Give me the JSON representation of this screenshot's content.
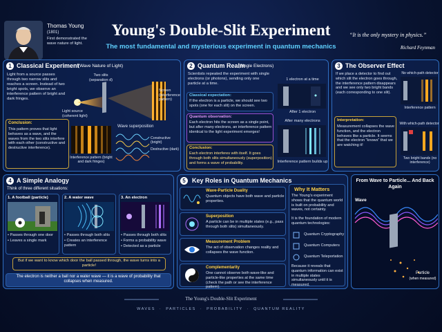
{
  "header": {
    "name": "Thomas Young",
    "year": "(1801)",
    "caption": "First demonstrated the wave nature of light.",
    "title": "Young's Double-Slit Experiment",
    "subtitle": "The most fundamental and mysterious experiment in quantum mechanics",
    "quote": "“It is the only mystery in physics.”",
    "quote_author": "Richard Feynman"
  },
  "classical": {
    "number": "1",
    "title": "Classical Experiment",
    "subtitle": "(Wave Nature of Light)",
    "body": "Light from a source passes through two narrow slits and reaches a screen. Instead of two bright spots, we observe an interference pattern of bright and dark fringes.",
    "slits": "Two slits (separation d)",
    "screen": "Screen (interference pattern)",
    "source": "Light source (coherent light)",
    "conclusion_label": "Conclusion:",
    "conclusion": "This pattern proves that light behaves as a wave, and the waves from the two slits interfere with each other (constructive and destructive interference).",
    "pattern_label": "Interference pattern (bright and dark fringes)",
    "superposition_label": "Wave superposition",
    "constructive": "Constructive (bright)",
    "destructive": "Destructive (dark)"
  },
  "quantum": {
    "number": "2",
    "title": "Quantum Realm",
    "subtitle": "(Single Electrons)",
    "body": "Scientists repeated the experiment with single electrons (or photons), sending only one particle at a time.",
    "expectation_label": "Classical expectation:",
    "expectation": "If the electron is a particle, we should see two spots (one for each slit) on the screen.",
    "observation_label": "Quantum observation:",
    "observation": "Each electron hits the screen as a single point, but after many electrons, an interference pattern identical to the light experiment emerges!",
    "conclusion_label": "Conclusion:",
    "conclusion": "Each electron interferes with itself. It goes through both slits simultaneously (superposition) and forms a wave of probability.",
    "one_at_a_time": "1 electron at a time",
    "after_one": "After 1 electron",
    "after_many": "After many electrons",
    "builds_up": "Interference pattern builds up"
  },
  "observer": {
    "number": "3",
    "title": "The Observer Effect",
    "body": "If we place a detector to find out which slit the electron goes through, the interference pattern disappears and we see only two bright bands (each corresponding to one slit).",
    "no_detector": "No which-path detector",
    "interference": "Interference pattern",
    "with_detector": "With which-path detector",
    "two_bands": "Two bright bands (no interference)",
    "interpretation_label": "Interpretation:",
    "interpretation": "Measurement collapses the wave function, and the electron behaves like a particle. It seems that the electron “knows” that we are watching it!"
  },
  "analogy": {
    "number": "4",
    "title": "A Simple Analogy",
    "intro": "Think of three different situations:",
    "cases": [
      {
        "title": "1. A football (particle)",
        "points": [
          "• Passes through one door",
          "• Leaves a single mark"
        ]
      },
      {
        "title": "2. A water wave",
        "points": [
          "• Passes through both slits",
          "• Creates an interference pattern"
        ]
      },
      {
        "title": "3. An electron",
        "points": [
          "• Passes through both slits",
          "• Forms a probability wave",
          "• Detected as a particle"
        ]
      }
    ],
    "note": "But if we want to know which door the ball passed through, the wave turns into a particle!",
    "summary": "The electron is neither a ball nor a water wave — it is a wave of probability that collapses when measured."
  },
  "roles": {
    "number": "5",
    "title": "Key Roles in Quantum Mechanics",
    "items": [
      {
        "title": "Wave-Particle Duality",
        "text": "Quantum objects have both wave and particle properties."
      },
      {
        "title": "Superposition",
        "text": "A particle can be in multiple states (e.g., pass through both slits) simultaneously."
      },
      {
        "title": "Measurement Problem",
        "text": "The act of observation changes reality and collapses the wave function."
      },
      {
        "title": "Complementarity",
        "text": "One cannot observe both wave-like and particle-like properties at the same time (check the path or see the interference pattern)."
      }
    ]
  },
  "why": {
    "title": "Why It Matters",
    "body": "The Young's experiment shows that the quantum world is built on probability and waves, not certainty.",
    "lead": "It is the foundation of modern quantum technologies:",
    "tech": [
      "Quantum Cryptography",
      "Quantum Computers",
      "Quantum Teleportation"
    ],
    "closing": "Because it reveals that quantum information can exist in multiple states simultaneously until it is measured."
  },
  "cycle": {
    "title": "From Wave to Particle... And Back Again",
    "wave": "Wave",
    "particle": "Particle",
    "particle_note": "(when measured)"
  },
  "footer": {
    "title": "The Young's Double-Slit Experiment",
    "keywords": [
      "WAVES",
      "PARTICLES",
      "PROBABILITY",
      "QUANTUM REALITY"
    ]
  }
}
